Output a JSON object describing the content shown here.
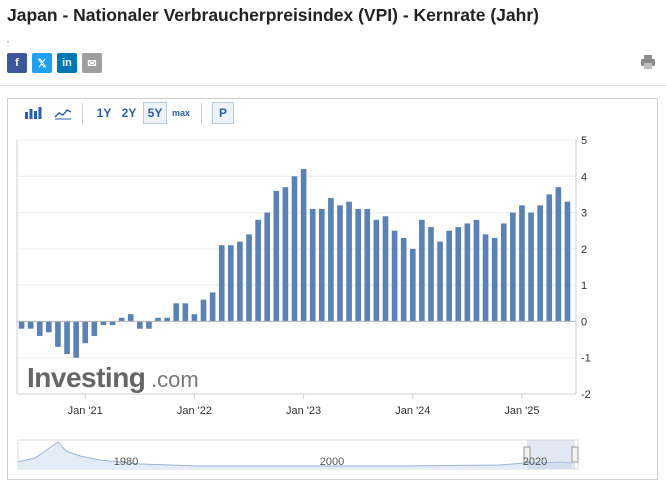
{
  "header": {
    "title": "Japan - Nationaler Verbraucherpreisindex (VPI) - Kernrate (Jahr)"
  },
  "share": [
    {
      "icon": "facebook-icon",
      "glyph": "f",
      "color": "#3b5998"
    },
    {
      "icon": "x-icon",
      "glyph": "𝕏",
      "color": "#1da1f2"
    },
    {
      "icon": "linkedin-icon",
      "glyph": "in",
      "color": "#0077b5"
    },
    {
      "icon": "mail-icon",
      "glyph": "✉",
      "color": "#9e9e9e"
    }
  ],
  "toolbar": {
    "bar_icon": "bar-chart-icon",
    "line_icon": "line-chart-icon",
    "ranges": [
      "1Y",
      "2Y",
      "5Y",
      "max"
    ],
    "selected_range": "5Y",
    "p_label": "P"
  },
  "watermark": {
    "brand": "Investing",
    "suffix": ".com"
  },
  "chart_data": {
    "type": "bar",
    "title": "",
    "xlabel": "",
    "ylabel": "",
    "ylim": [
      -2,
      5
    ],
    "yticks": [
      -2,
      -1,
      0,
      1,
      2,
      3,
      4,
      5
    ],
    "x_tick_labels": [
      "Jan '21",
      "Jan '22",
      "Jan '23",
      "Jan '24",
      "Jan '25"
    ],
    "x_tick_periods": [
      "2021-01",
      "2022-01",
      "2023-01",
      "2024-01",
      "2025-01"
    ],
    "start_period": "2020-06",
    "grid": true,
    "bar_color": "#5b82b5",
    "periods": [
      "2020-06",
      "2020-07",
      "2020-08",
      "2020-09",
      "2020-10",
      "2020-11",
      "2020-12",
      "2021-01",
      "2021-02",
      "2021-03",
      "2021-04",
      "2021-05",
      "2021-06",
      "2021-07",
      "2021-08",
      "2021-09",
      "2021-10",
      "2021-11",
      "2021-12",
      "2022-01",
      "2022-02",
      "2022-03",
      "2022-04",
      "2022-05",
      "2022-06",
      "2022-07",
      "2022-08",
      "2022-09",
      "2022-10",
      "2022-11",
      "2022-12",
      "2023-01",
      "2023-02",
      "2023-03",
      "2023-04",
      "2023-05",
      "2023-06",
      "2023-07",
      "2023-08",
      "2023-09",
      "2023-10",
      "2023-11",
      "2023-12",
      "2024-01",
      "2024-02",
      "2024-03",
      "2024-04",
      "2024-05",
      "2024-06",
      "2024-07",
      "2024-08",
      "2024-09",
      "2024-10",
      "2024-11",
      "2024-12",
      "2025-01",
      "2025-02",
      "2025-03",
      "2025-04",
      "2025-05",
      "2025-06"
    ],
    "values": [
      -0.2,
      -0.2,
      -0.4,
      -0.3,
      -0.7,
      -0.9,
      -1.0,
      -0.6,
      -0.4,
      -0.1,
      -0.1,
      0.1,
      0.2,
      -0.2,
      -0.2,
      0.1,
      0.1,
      0.5,
      0.5,
      0.2,
      0.6,
      0.8,
      2.1,
      2.1,
      2.2,
      2.4,
      2.8,
      3.0,
      3.6,
      3.7,
      4.0,
      4.2,
      3.1,
      3.1,
      3.4,
      3.2,
      3.3,
      3.1,
      3.1,
      2.8,
      2.9,
      2.5,
      2.3,
      2.0,
      2.8,
      2.6,
      2.2,
      2.5,
      2.6,
      2.7,
      2.8,
      2.4,
      2.3,
      2.7,
      3.0,
      3.2,
      3.0,
      3.2,
      3.5,
      3.7,
      3.3
    ]
  },
  "navigator": {
    "labels": [
      "1980",
      "2000",
      "2020"
    ]
  }
}
